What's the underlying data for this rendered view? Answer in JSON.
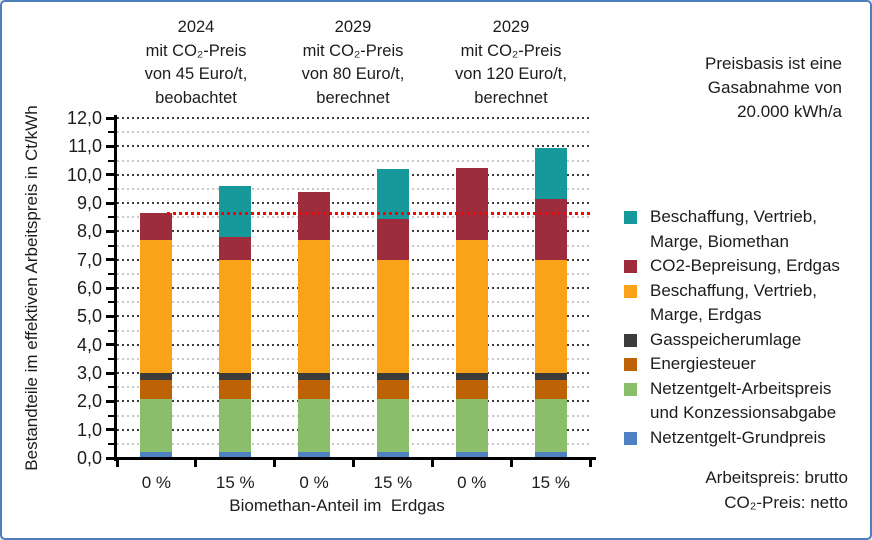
{
  "frame": {
    "border_color": "#4d7ebc",
    "background": "#ffffff",
    "text_color": "#1c1c1c"
  },
  "y_axis": {
    "title": "Bestandteile im effektiven Arbeitspreis in Ct/kWh",
    "min": 0,
    "max": 12,
    "major_step": 1,
    "minor_step": 0.5,
    "decimal_separator": ","
  },
  "x_axis": {
    "title": "Biomethan-Anteil im  Erdgas",
    "categories": [
      "0 %",
      "15 %",
      "0 %",
      "15 %",
      "0 %",
      "15 %"
    ]
  },
  "group_headers": [
    {
      "lines": [
        "2024",
        "mit CO₂-Preis",
        "von 45 Euro/t,",
        "beobachtet"
      ]
    },
    {
      "lines": [
        "2029",
        "mit CO₂-Preis",
        "von 80 Euro/t,",
        "berechnet"
      ]
    },
    {
      "lines": [
        "2029",
        "mit CO₂-Preis",
        "von 120 Euro/t,",
        "berechnet"
      ]
    }
  ],
  "notes": {
    "top_right_lines": [
      "Preisbasis ist eine",
      "Gasabnahme von",
      "20.000 kWh/a"
    ],
    "bottom_right_lines": [
      "Arbeitspreis: brutto",
      "CO₂-Preis: netto"
    ]
  },
  "legend": [
    {
      "color": "#17989A",
      "label_lines": [
        "Beschaffung, Vertrieb,",
        "Marge, Biomethan"
      ]
    },
    {
      "color": "#9D2C3C",
      "label_lines": [
        "CO2-Bepreisung, Erdgas"
      ]
    },
    {
      "color": "#FAA318",
      "label_lines": [
        "Beschaffung, Vertrieb,",
        "Marge, Erdgas"
      ]
    },
    {
      "color": "#3B3B3B",
      "label_lines": [
        "Gasspeicherumlage"
      ]
    },
    {
      "color": "#BE6206",
      "label_lines": [
        "Energiesteuer"
      ]
    },
    {
      "color": "#8BBE6B",
      "label_lines": [
        "Netzentgelt-Arbeitspreis",
        "und Konzessionsabgabe"
      ]
    },
    {
      "color": "#4E82C2",
      "label_lines": [
        "Netzentgelt-Grundpreis"
      ]
    }
  ],
  "chart_data": {
    "type": "bar",
    "stacked": true,
    "title": "",
    "xlabel": "Biomethan-Anteil im  Erdgas",
    "ylabel": "Bestandteile im effektiven Arbeitspreis in Ct/kWh",
    "ylim": [
      0,
      12
    ],
    "grid": "major and minor horizontal dotted lines",
    "legend_position": "right",
    "categories": [
      "0 %",
      "15 %",
      "0 %",
      "15 %",
      "0 %",
      "15 %"
    ],
    "groups": [
      "2024 mit CO₂-Preis von 45 Euro/t, beobachtet",
      "2029 mit CO₂-Preis von 80 Euro/t, berechnet",
      "2029 mit CO₂-Preis von 120 Euro/t, berechnet"
    ],
    "series": [
      {
        "name": "Netzentgelt-Grundpreis",
        "color": "#4E82C2",
        "values": [
          0.2,
          0.2,
          0.2,
          0.2,
          0.2,
          0.2
        ]
      },
      {
        "name": "Netzentgelt-Arbeitspreis und Konzessionsabgabe",
        "color": "#8BBE6B",
        "values": [
          1.9,
          1.9,
          1.9,
          1.9,
          1.9,
          1.9
        ]
      },
      {
        "name": "Energiesteuer",
        "color": "#BE6206",
        "values": [
          0.65,
          0.65,
          0.65,
          0.65,
          0.65,
          0.65
        ]
      },
      {
        "name": "Gasspeicherumlage",
        "color": "#3B3B3B",
        "values": [
          0.25,
          0.25,
          0.25,
          0.25,
          0.25,
          0.25
        ]
      },
      {
        "name": "Beschaffung, Vertrieb, Marge, Erdgas",
        "color": "#FAA318",
        "values": [
          4.7,
          4.0,
          4.7,
          4.0,
          4.7,
          4.0
        ]
      },
      {
        "name": "CO2-Bepreisung, Erdgas",
        "color": "#9D2C3C",
        "values": [
          0.95,
          0.8,
          1.7,
          1.45,
          2.55,
          2.15
        ]
      },
      {
        "name": "Beschaffung, Vertrieb, Marge, Biomethan",
        "color": "#17989A",
        "values": [
          0,
          1.8,
          0,
          1.75,
          0,
          1.8
        ]
      }
    ],
    "totals": [
      8.65,
      9.6,
      9.4,
      10.2,
      10.25,
      10.95
    ],
    "reference_line": {
      "value": 8.65,
      "color": "#FF0000",
      "style": "dotted"
    }
  }
}
